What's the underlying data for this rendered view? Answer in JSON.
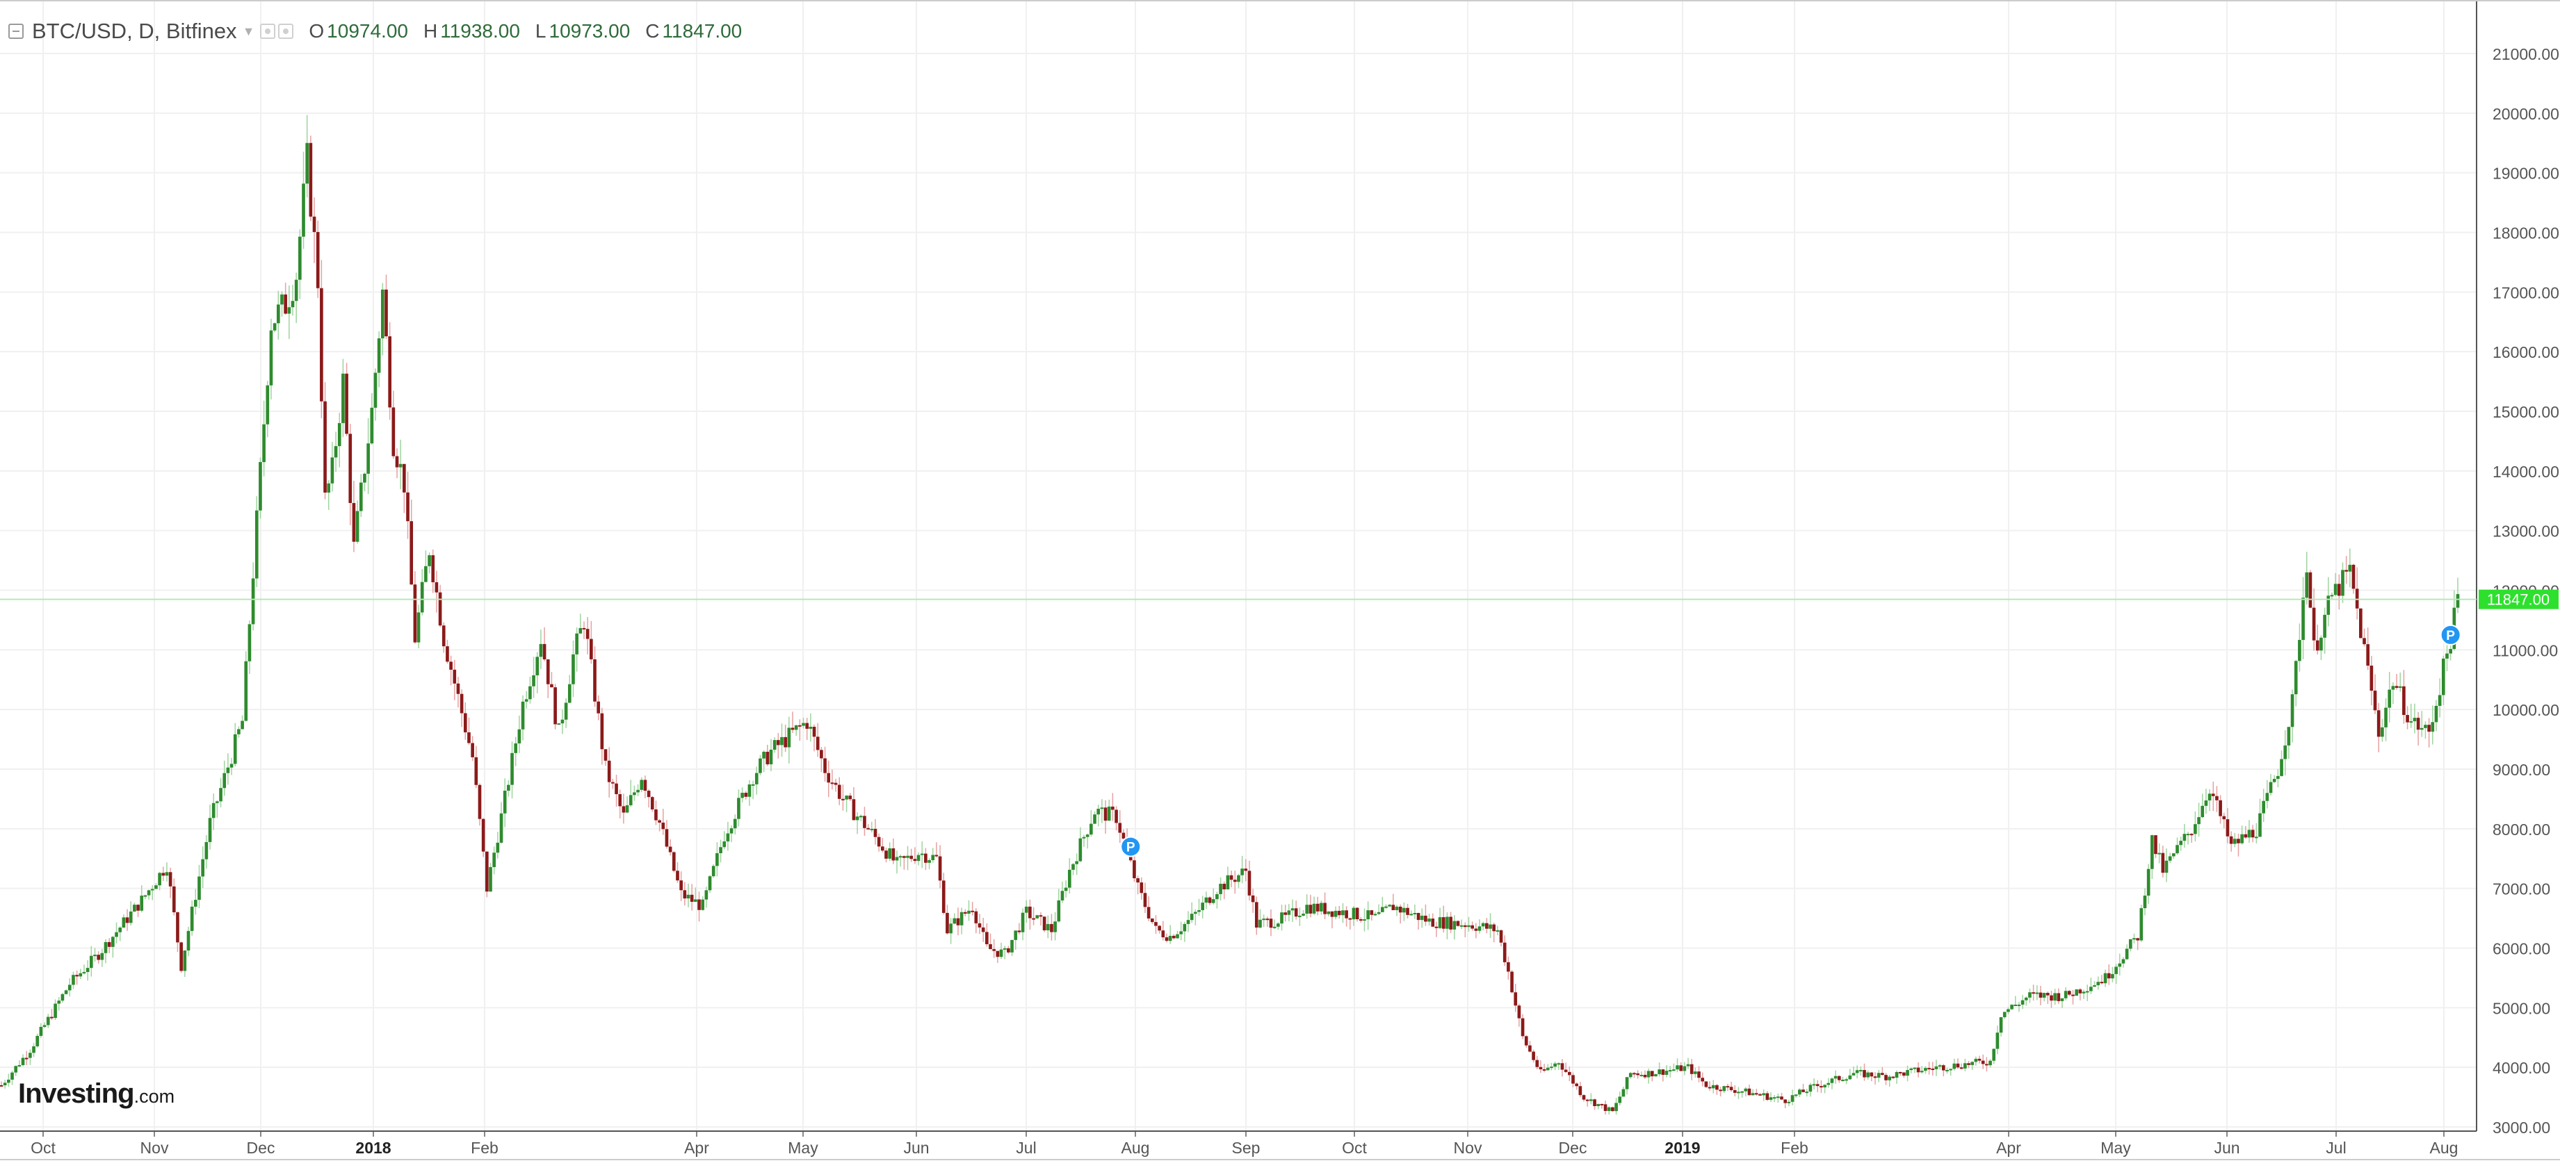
{
  "header": {
    "symbol": "BTC/USD, D, Bitfinex",
    "ohlc": [
      {
        "label": "O",
        "value": "10974.00"
      },
      {
        "label": "H",
        "value": "11938.00"
      },
      {
        "label": "L",
        "value": "10973.00"
      },
      {
        "label": "C",
        "value": "11847.00"
      }
    ]
  },
  "logo": {
    "brand": "Investing",
    "tld": ".com"
  },
  "colors": {
    "up": "#2e8b2e",
    "down": "#8b1a1a",
    "last_price": "#2ee02e",
    "marker": "#2196f3",
    "grid": "#f0f0f0"
  },
  "icons": [
    "collapse-icon",
    "settings-icon",
    "visibility-icon",
    "caret-down-icon",
    "p-marker-icon"
  ],
  "chart_data": {
    "type": "candlestick",
    "title": "BTC/USD, D, Bitfinex",
    "ylim": [
      2300,
      21500
    ],
    "y_ticks": [
      "3000.00",
      "4000.00",
      "5000.00",
      "6000.00",
      "7000.00",
      "8000.00",
      "9000.00",
      "10000.00",
      "11000.00",
      "12000.00",
      "13000.00",
      "14000.00",
      "15000.00",
      "16000.00",
      "17000.00",
      "18000.00",
      "19000.00",
      "20000.00",
      "21000.00"
    ],
    "x_labels": [
      "Oct",
      "Nov",
      "Dec",
      "2018",
      "Feb",
      "Apr",
      "May",
      "Jun",
      "Jul",
      "Aug",
      "Sep",
      "Oct",
      "Nov",
      "Dec",
      "2019",
      "Feb",
      "Apr",
      "May",
      "Jun",
      "Jul",
      "Aug"
    ],
    "bold_x_labels": [
      "2018",
      "2019"
    ],
    "last_price": "11847.00",
    "markers": [
      {
        "label": "P",
        "date": "2018-08-03",
        "price": 7700
      },
      {
        "label": "P",
        "date": "2019-08-05",
        "price": 11250
      }
    ],
    "series": [
      {
        "date": "2017-09-23",
        "close": 3700
      },
      {
        "date": "2017-10-01",
        "close": 4300
      },
      {
        "date": "2017-10-12",
        "close": 5400
      },
      {
        "date": "2017-10-20",
        "close": 5900
      },
      {
        "date": "2017-11-01",
        "close": 6800
      },
      {
        "date": "2017-11-08",
        "close": 7400
      },
      {
        "date": "2017-11-12",
        "close": 5700
      },
      {
        "date": "2017-11-20",
        "close": 8100
      },
      {
        "date": "2017-11-29",
        "close": 9800
      },
      {
        "date": "2017-12-07",
        "close": 16500
      },
      {
        "date": "2017-12-11",
        "close": 16800
      },
      {
        "date": "2017-12-14",
        "close": 17300
      },
      {
        "date": "2017-12-17",
        "close": 19200
      },
      {
        "date": "2017-12-20",
        "close": 17200
      },
      {
        "date": "2017-12-22",
        "close": 13500
      },
      {
        "date": "2017-12-24",
        "close": 14000
      },
      {
        "date": "2017-12-27",
        "close": 15500
      },
      {
        "date": "2017-12-30",
        "close": 12700
      },
      {
        "date": "2018-01-04",
        "close": 15000
      },
      {
        "date": "2018-01-07",
        "close": 17000
      },
      {
        "date": "2018-01-10",
        "close": 14500
      },
      {
        "date": "2018-01-13",
        "close": 13800
      },
      {
        "date": "2018-01-16",
        "close": 11200
      },
      {
        "date": "2018-01-20",
        "close": 12700
      },
      {
        "date": "2018-01-24",
        "close": 11200
      },
      {
        "date": "2018-02-01",
        "close": 9200
      },
      {
        "date": "2018-02-05",
        "close": 7000
      },
      {
        "date": "2018-02-10",
        "close": 8500
      },
      {
        "date": "2018-02-15",
        "close": 10100
      },
      {
        "date": "2018-02-20",
        "close": 11200
      },
      {
        "date": "2018-02-25",
        "close": 9600
      },
      {
        "date": "2018-03-01",
        "close": 10900
      },
      {
        "date": "2018-03-04",
        "close": 11500
      },
      {
        "date": "2018-03-10",
        "close": 9000
      },
      {
        "date": "2018-03-15",
        "close": 8200
      },
      {
        "date": "2018-03-20",
        "close": 8900
      },
      {
        "date": "2018-03-25",
        "close": 8100
      },
      {
        "date": "2018-03-31",
        "close": 6900
      },
      {
        "date": "2018-04-06",
        "close": 6700
      },
      {
        "date": "2018-04-12",
        "close": 7900
      },
      {
        "date": "2018-04-20",
        "close": 8900
      },
      {
        "date": "2018-04-25",
        "close": 9300
      },
      {
        "date": "2018-05-05",
        "close": 9800
      },
      {
        "date": "2018-05-10",
        "close": 9000
      },
      {
        "date": "2018-05-15",
        "close": 8500
      },
      {
        "date": "2018-05-22",
        "close": 8000
      },
      {
        "date": "2018-05-30",
        "close": 7400
      },
      {
        "date": "2018-06-05",
        "close": 7600
      },
      {
        "date": "2018-06-10",
        "close": 7500
      },
      {
        "date": "2018-06-13",
        "close": 6300
      },
      {
        "date": "2018-06-20",
        "close": 6700
      },
      {
        "date": "2018-06-24",
        "close": 6000
      },
      {
        "date": "2018-06-29",
        "close": 5900
      },
      {
        "date": "2018-07-05",
        "close": 6600
      },
      {
        "date": "2018-07-12",
        "close": 6300
      },
      {
        "date": "2018-07-17",
        "close": 7300
      },
      {
        "date": "2018-07-24",
        "close": 8300
      },
      {
        "date": "2018-07-30",
        "close": 8200
      },
      {
        "date": "2018-08-05",
        "close": 7000
      },
      {
        "date": "2018-08-10",
        "close": 6300
      },
      {
        "date": "2018-08-14",
        "close": 6200
      },
      {
        "date": "2018-08-20",
        "close": 6500
      },
      {
        "date": "2018-08-27",
        "close": 7000
      },
      {
        "date": "2018-09-04",
        "close": 7300
      },
      {
        "date": "2018-09-07",
        "close": 6400
      },
      {
        "date": "2018-09-15",
        "close": 6500
      },
      {
        "date": "2018-09-21",
        "close": 6700
      },
      {
        "date": "2018-10-01",
        "close": 6600
      },
      {
        "date": "2018-10-10",
        "close": 6500
      },
      {
        "date": "2018-10-15",
        "close": 6700
      },
      {
        "date": "2018-10-25",
        "close": 6450
      },
      {
        "date": "2018-11-05",
        "close": 6400
      },
      {
        "date": "2018-11-13",
        "close": 6300
      },
      {
        "date": "2018-11-16",
        "close": 5600
      },
      {
        "date": "2018-11-20",
        "close": 4500
      },
      {
        "date": "2018-11-25",
        "close": 3900
      },
      {
        "date": "2018-11-30",
        "close": 4100
      },
      {
        "date": "2018-12-07",
        "close": 3500
      },
      {
        "date": "2018-12-15",
        "close": 3250
      },
      {
        "date": "2018-12-20",
        "close": 3900
      },
      {
        "date": "2018-12-25",
        "close": 3900
      },
      {
        "date": "2019-01-05",
        "close": 4000
      },
      {
        "date": "2019-01-10",
        "close": 3700
      },
      {
        "date": "2019-01-20",
        "close": 3600
      },
      {
        "date": "2019-02-01",
        "close": 3450
      },
      {
        "date": "2019-02-08",
        "close": 3650
      },
      {
        "date": "2019-02-20",
        "close": 3900
      },
      {
        "date": "2019-03-01",
        "close": 3850
      },
      {
        "date": "2019-03-15",
        "close": 4000
      },
      {
        "date": "2019-03-30",
        "close": 4100
      },
      {
        "date": "2019-04-02",
        "close": 4900
      },
      {
        "date": "2019-04-10",
        "close": 5200
      },
      {
        "date": "2019-04-20",
        "close": 5200
      },
      {
        "date": "2019-05-01",
        "close": 5500
      },
      {
        "date": "2019-05-10",
        "close": 6200
      },
      {
        "date": "2019-05-14",
        "close": 7800
      },
      {
        "date": "2019-05-17",
        "close": 7300
      },
      {
        "date": "2019-05-25",
        "close": 8000
      },
      {
        "date": "2019-05-30",
        "close": 8700
      },
      {
        "date": "2019-06-05",
        "close": 7700
      },
      {
        "date": "2019-06-12",
        "close": 8000
      },
      {
        "date": "2019-06-18",
        "close": 9000
      },
      {
        "date": "2019-06-22",
        "close": 10100
      },
      {
        "date": "2019-06-26",
        "close": 12500
      },
      {
        "date": "2019-06-28",
        "close": 11000
      },
      {
        "date": "2019-07-03",
        "close": 11900
      },
      {
        "date": "2019-07-08",
        "close": 12300
      },
      {
        "date": "2019-07-12",
        "close": 11000
      },
      {
        "date": "2019-07-16",
        "close": 9600
      },
      {
        "date": "2019-07-20",
        "close": 10500
      },
      {
        "date": "2019-07-25",
        "close": 9800
      },
      {
        "date": "2019-07-30",
        "close": 9600
      },
      {
        "date": "2019-08-05",
        "close": 11200
      },
      {
        "date": "2019-08-07",
        "close": 11847
      }
    ]
  }
}
